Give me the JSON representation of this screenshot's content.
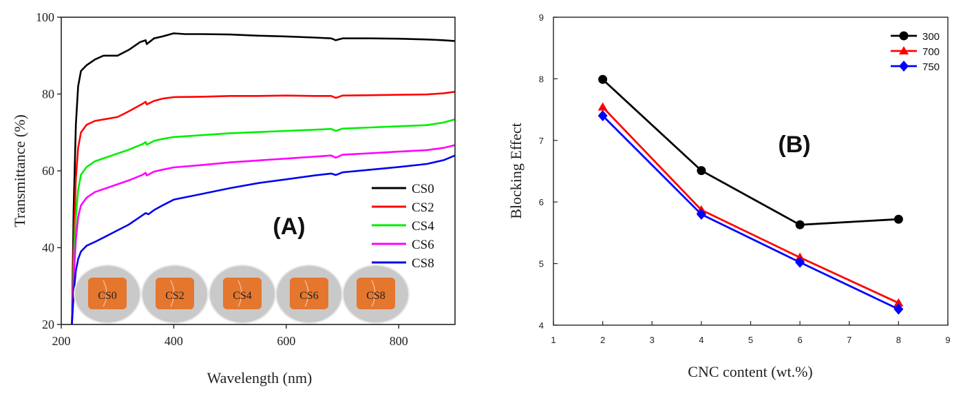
{
  "chart_data": [
    {
      "type": "line",
      "panel_label": "(A)",
      "xlabel": "Wavelength (nm)",
      "ylabel": "Transmittance (%)",
      "xlim": [
        200,
        900
      ],
      "ylim": [
        20,
        100
      ],
      "xticks": [
        200,
        400,
        600,
        800
      ],
      "yticks": [
        20,
        40,
        60,
        80,
        100
      ],
      "legend_position": "lower-right",
      "series": [
        {
          "name": "CS0",
          "color": "#000000",
          "points": [
            [
              219,
              20
            ],
            [
              222,
              50
            ],
            [
              226,
              72
            ],
            [
              230,
              82
            ],
            [
              235,
              86
            ],
            [
              245,
              87.5
            ],
            [
              260,
              89
            ],
            [
              275,
              90
            ],
            [
              300,
              90
            ],
            [
              320,
              91.5
            ],
            [
              340,
              93.5
            ],
            [
              350,
              94
            ],
            [
              352,
              93
            ],
            [
              365,
              94.5
            ],
            [
              380,
              95
            ],
            [
              400,
              95.8
            ],
            [
              420,
              95.6
            ],
            [
              450,
              95.6
            ],
            [
              500,
              95.5
            ],
            [
              550,
              95.2
            ],
            [
              600,
              95
            ],
            [
              650,
              94.7
            ],
            [
              680,
              94.5
            ],
            [
              688,
              94
            ],
            [
              700,
              94.5
            ],
            [
              750,
              94.5
            ],
            [
              800,
              94.4
            ],
            [
              850,
              94.2
            ],
            [
              880,
              94
            ],
            [
              900,
              93.8
            ]
          ]
        },
        {
          "name": "CS2",
          "color": "#ff0000",
          "points": [
            [
              219,
              20
            ],
            [
              222,
              40
            ],
            [
              226,
              58
            ],
            [
              230,
              66
            ],
            [
              235,
              70
            ],
            [
              245,
              72
            ],
            [
              260,
              73
            ],
            [
              280,
              73.5
            ],
            [
              300,
              74
            ],
            [
              320,
              75.5
            ],
            [
              345,
              77.5
            ],
            [
              350,
              78
            ],
            [
              352,
              77.3
            ],
            [
              365,
              78.2
            ],
            [
              380,
              78.8
            ],
            [
              400,
              79.2
            ],
            [
              450,
              79.3
            ],
            [
              500,
              79.5
            ],
            [
              550,
              79.5
            ],
            [
              600,
              79.6
            ],
            [
              650,
              79.5
            ],
            [
              680,
              79.5
            ],
            [
              688,
              79
            ],
            [
              700,
              79.6
            ],
            [
              750,
              79.7
            ],
            [
              800,
              79.8
            ],
            [
              850,
              79.9
            ],
            [
              880,
              80.2
            ],
            [
              900,
              80.6
            ]
          ]
        },
        {
          "name": "CS4",
          "color": "#00ee00",
          "points": [
            [
              219,
              20
            ],
            [
              222,
              35
            ],
            [
              226,
              48
            ],
            [
              230,
              55
            ],
            [
              235,
              59
            ],
            [
              245,
              61
            ],
            [
              260,
              62.5
            ],
            [
              280,
              63.5
            ],
            [
              300,
              64.5
            ],
            [
              320,
              65.5
            ],
            [
              345,
              67
            ],
            [
              350,
              67.5
            ],
            [
              352,
              66.8
            ],
            [
              365,
              67.8
            ],
            [
              380,
              68.3
            ],
            [
              400,
              68.8
            ],
            [
              450,
              69.3
            ],
            [
              500,
              69.8
            ],
            [
              550,
              70.1
            ],
            [
              600,
              70.4
            ],
            [
              650,
              70.7
            ],
            [
              680,
              70.9
            ],
            [
              688,
              70.4
            ],
            [
              700,
              71
            ],
            [
              750,
              71.3
            ],
            [
              800,
              71.6
            ],
            [
              850,
              71.9
            ],
            [
              880,
              72.6
            ],
            [
              900,
              73.4
            ]
          ]
        },
        {
          "name": "CS6",
          "color": "#ff00ff",
          "points": [
            [
              219,
              20
            ],
            [
              222,
              32
            ],
            [
              226,
              42
            ],
            [
              230,
              48
            ],
            [
              235,
              51
            ],
            [
              245,
              53
            ],
            [
              260,
              54.5
            ],
            [
              280,
              55.5
            ],
            [
              300,
              56.5
            ],
            [
              320,
              57.5
            ],
            [
              345,
              59
            ],
            [
              350,
              59.5
            ],
            [
              352,
              58.8
            ],
            [
              365,
              59.8
            ],
            [
              380,
              60.3
            ],
            [
              400,
              60.9
            ],
            [
              450,
              61.5
            ],
            [
              500,
              62.2
            ],
            [
              550,
              62.7
            ],
            [
              600,
              63.2
            ],
            [
              650,
              63.7
            ],
            [
              680,
              64
            ],
            [
              688,
              63.4
            ],
            [
              700,
              64.2
            ],
            [
              750,
              64.6
            ],
            [
              800,
              65
            ],
            [
              850,
              65.4
            ],
            [
              880,
              66
            ],
            [
              900,
              66.7
            ]
          ]
        },
        {
          "name": "CS8",
          "color": "#0000ee",
          "points": [
            [
              219,
              20
            ],
            [
              222,
              28
            ],
            [
              226,
              34
            ],
            [
              230,
              37
            ],
            [
              235,
              39
            ],
            [
              245,
              40.5
            ],
            [
              260,
              41.5
            ],
            [
              280,
              43
            ],
            [
              300,
              44.5
            ],
            [
              320,
              46
            ],
            [
              340,
              48
            ],
            [
              350,
              49
            ],
            [
              355,
              48.7
            ],
            [
              365,
              49.8
            ],
            [
              380,
              51
            ],
            [
              400,
              52.5
            ],
            [
              450,
              54
            ],
            [
              500,
              55.5
            ],
            [
              550,
              56.8
            ],
            [
              600,
              57.8
            ],
            [
              650,
              58.8
            ],
            [
              680,
              59.3
            ],
            [
              688,
              58.9
            ],
            [
              700,
              59.6
            ],
            [
              750,
              60.3
            ],
            [
              800,
              61
            ],
            [
              850,
              61.8
            ],
            [
              880,
              62.8
            ],
            [
              900,
              64
            ]
          ]
        }
      ],
      "inset_samples": [
        "CS0",
        "CS2",
        "CS4",
        "CS6",
        "CS8"
      ],
      "colors": {
        "disk": "#c9c9c9",
        "label_tile": "#e5762e"
      }
    },
    {
      "type": "line",
      "panel_label": "(B)",
      "xlabel": "CNC content (wt.%)",
      "ylabel": "Blocking Effect",
      "xlim": [
        1,
        9
      ],
      "ylim": [
        4,
        9
      ],
      "xticks": [
        1,
        2,
        3,
        4,
        5,
        6,
        7,
        8,
        9
      ],
      "yticks": [
        4,
        5,
        6,
        7,
        8,
        9
      ],
      "legend_position": "top-right",
      "series": [
        {
          "name": "300",
          "color": "#000000",
          "marker": "circle",
          "x": [
            2,
            4,
            6,
            8
          ],
          "y": [
            7.99,
            6.51,
            5.63,
            5.72
          ]
        },
        {
          "name": "700",
          "color": "#ff0000",
          "marker": "triangle",
          "x": [
            2,
            4,
            6,
            8
          ],
          "y": [
            7.54,
            5.87,
            5.1,
            4.36
          ]
        },
        {
          "name": "750",
          "color": "#0000ff",
          "marker": "diamond",
          "x": [
            2,
            4,
            6,
            8
          ],
          "y": [
            7.4,
            5.8,
            5.02,
            4.26
          ]
        }
      ]
    }
  ]
}
